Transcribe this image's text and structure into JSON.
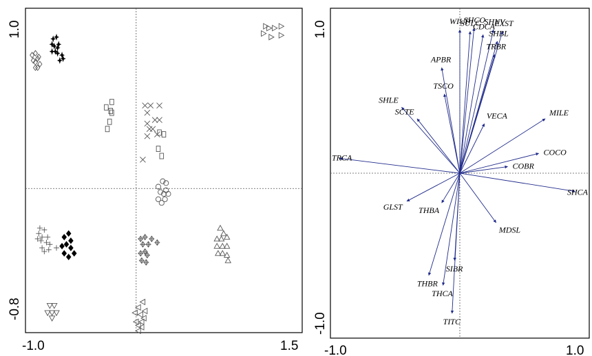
{
  "chart_data": [
    {
      "type": "scatter",
      "xlim": [
        -1.0,
        1.5
      ],
      "ylim": [
        -0.8,
        1.0
      ],
      "x_ticks": [
        "-1.0",
        "1.5"
      ],
      "y_ticks": [
        "1.0",
        "-0.8"
      ],
      "reference_lines": {
        "x": 0,
        "y": 0
      },
      "groups": [
        {
          "marker": "diamond-open",
          "points": [
            [
              -0.94,
              0.74
            ],
            [
              -0.91,
              0.75
            ],
            [
              -0.93,
              0.71
            ],
            [
              -0.91,
              0.7
            ],
            [
              -0.89,
              0.72
            ],
            [
              -0.88,
              0.73
            ],
            [
              -0.91,
              0.67
            ],
            [
              -0.89,
              0.67
            ],
            [
              -0.87,
              0.69
            ]
          ]
        },
        {
          "marker": "cross-filled",
          "points": [
            [
              -0.75,
              0.83
            ],
            [
              -0.72,
              0.84
            ],
            [
              -0.76,
              0.8
            ],
            [
              -0.74,
              0.79
            ],
            [
              -0.71,
              0.78
            ],
            [
              -0.7,
              0.8
            ],
            [
              -0.76,
              0.76
            ],
            [
              -0.73,
              0.76
            ],
            [
              -0.71,
              0.75
            ],
            [
              -0.67,
              0.74
            ],
            [
              -0.69,
              0.71
            ],
            [
              -0.66,
              0.72
            ]
          ]
        },
        {
          "marker": "square-open",
          "points": [
            [
              -0.22,
              0.48
            ],
            [
              -0.27,
              0.45
            ],
            [
              -0.23,
              0.43
            ],
            [
              -0.22,
              0.42
            ],
            [
              -0.24,
              0.37
            ],
            [
              -0.26,
              0.33
            ],
            [
              0.21,
              0.31
            ],
            [
              0.25,
              0.3
            ],
            [
              0.2,
              0.22
            ],
            [
              0.23,
              0.18
            ]
          ]
        },
        {
          "marker": "x",
          "points": [
            [
              0.08,
              0.46
            ],
            [
              0.13,
              0.46
            ],
            [
              0.21,
              0.46
            ],
            [
              0.1,
              0.42
            ],
            [
              0.17,
              0.38
            ],
            [
              0.1,
              0.36
            ],
            [
              0.21,
              0.38
            ],
            [
              0.15,
              0.33
            ],
            [
              0.19,
              0.3
            ],
            [
              0.12,
              0.33
            ],
            [
              0.1,
              0.29
            ],
            [
              0.06,
              0.16
            ]
          ]
        },
        {
          "marker": "triangle-right-open",
          "points": [
            [
              1.17,
              0.9
            ],
            [
              1.2,
              0.89
            ],
            [
              1.25,
              0.89
            ],
            [
              1.31,
              0.9
            ],
            [
              1.15,
              0.86
            ],
            [
              1.22,
              0.84
            ],
            [
              1.31,
              0.85
            ]
          ]
        },
        {
          "marker": "circle-open",
          "points": [
            [
              0.24,
              0.04
            ],
            [
              0.27,
              0.03
            ],
            [
              0.2,
              0.01
            ],
            [
              0.27,
              -0.01
            ],
            [
              0.22,
              -0.02
            ],
            [
              0.25,
              -0.03
            ],
            [
              0.29,
              -0.03
            ],
            [
              0.2,
              -0.06
            ],
            [
              0.23,
              -0.08
            ],
            [
              0.26,
              -0.06
            ]
          ]
        },
        {
          "marker": "plus",
          "points": [
            [
              -0.87,
              -0.22
            ],
            [
              -0.83,
              -0.23
            ],
            [
              -0.88,
              -0.25
            ],
            [
              -0.85,
              -0.27
            ],
            [
              -0.8,
              -0.27
            ],
            [
              -0.89,
              -0.28
            ],
            [
              -0.86,
              -0.29
            ],
            [
              -0.81,
              -0.3
            ],
            [
              -0.78,
              -0.31
            ],
            [
              -0.85,
              -0.33
            ],
            [
              -0.79,
              -0.34
            ],
            [
              -0.72,
              -0.33
            ],
            [
              -0.83,
              -0.35
            ]
          ]
        },
        {
          "marker": "diamond-filled",
          "points": [
            [
              -0.61,
              -0.25
            ],
            [
              -0.65,
              -0.27
            ],
            [
              -0.59,
              -0.29
            ],
            [
              -0.63,
              -0.31
            ],
            [
              -0.67,
              -0.32
            ],
            [
              -0.59,
              -0.33
            ],
            [
              -0.65,
              -0.36
            ],
            [
              -0.61,
              -0.38
            ],
            [
              -0.56,
              -0.36
            ]
          ]
        },
        {
          "marker": "diamond-plus",
          "points": [
            [
              0.04,
              -0.28
            ],
            [
              0.08,
              -0.27
            ],
            [
              0.14,
              -0.28
            ],
            [
              0.19,
              -0.3
            ],
            [
              0.06,
              -0.31
            ],
            [
              0.11,
              -0.31
            ],
            [
              0.08,
              -0.35
            ],
            [
              0.04,
              -0.36
            ],
            [
              0.1,
              -0.37
            ],
            [
              0.05,
              -0.4
            ],
            [
              0.09,
              -0.41
            ]
          ]
        },
        {
          "marker": "triangle-up-open",
          "points": [
            [
              0.76,
              -0.22
            ],
            [
              0.79,
              -0.25
            ],
            [
              0.73,
              -0.28
            ],
            [
              0.77,
              -0.28
            ],
            [
              0.82,
              -0.27
            ],
            [
              0.73,
              -0.32
            ],
            [
              0.78,
              -0.32
            ],
            [
              0.82,
              -0.32
            ],
            [
              0.74,
              -0.36
            ],
            [
              0.78,
              -0.36
            ],
            [
              0.82,
              -0.37
            ],
            [
              0.83,
              -0.4
            ]
          ]
        },
        {
          "marker": "triangle-down-open",
          "points": [
            [
              -0.78,
              -0.65
            ],
            [
              -0.74,
              -0.65
            ],
            [
              -0.8,
              -0.69
            ],
            [
              -0.76,
              -0.69
            ],
            [
              -0.72,
              -0.69
            ],
            [
              -0.76,
              -0.72
            ]
          ]
        },
        {
          "marker": "triangle-left-open",
          "points": [
            [
              0.06,
              -0.63
            ],
            [
              0.02,
              -0.66
            ],
            [
              0.08,
              -0.68
            ],
            [
              -0.01,
              -0.69
            ],
            [
              0.04,
              -0.7
            ],
            [
              0.07,
              -0.72
            ],
            [
              0.0,
              -0.74
            ],
            [
              0.05,
              -0.74
            ],
            [
              0.02,
              -0.76
            ],
            [
              0.05,
              -0.77
            ],
            [
              0.02,
              -0.79
            ]
          ]
        }
      ]
    },
    {
      "type": "biplot",
      "xlim": [
        -1.0,
        1.0
      ],
      "ylim": [
        -1.0,
        1.0
      ],
      "x_ticks": [
        "-1.0",
        "1.0"
      ],
      "y_ticks": [
        "1.0",
        "-1.0"
      ],
      "reference_lines": {
        "x": 0,
        "y": 0
      },
      "vectors": [
        {
          "name": "WIUP",
          "x": 0.0,
          "y": 0.87
        },
        {
          "name": "SULC",
          "x": 0.08,
          "y": 0.86
        },
        {
          "name": "SHCO",
          "x": 0.11,
          "y": 0.88
        },
        {
          "name": "CDCA",
          "x": 0.18,
          "y": 0.84
        },
        {
          "name": "SHNV",
          "x": 0.26,
          "y": 0.87
        },
        {
          "name": "SHBL",
          "x": 0.29,
          "y": 0.8
        },
        {
          "name": "EXST",
          "x": 0.33,
          "y": 0.86
        },
        {
          "name": "TRBR",
          "x": 0.27,
          "y": 0.72
        },
        {
          "name": "APBR",
          "x": -0.14,
          "y": 0.64
        },
        {
          "name": "TSCO",
          "x": -0.12,
          "y": 0.48
        },
        {
          "name": "SHLE",
          "x": -0.45,
          "y": 0.4
        },
        {
          "name": "SCTE",
          "x": -0.33,
          "y": 0.33
        },
        {
          "name": "VECA",
          "x": 0.19,
          "y": 0.3
        },
        {
          "name": "MILE",
          "x": 0.66,
          "y": 0.33
        },
        {
          "name": "TRCA",
          "x": -0.93,
          "y": 0.09
        },
        {
          "name": "COCO",
          "x": 0.61,
          "y": 0.12
        },
        {
          "name": "COBR",
          "x": 0.37,
          "y": 0.04
        },
        {
          "name": "SHCA",
          "x": 0.89,
          "y": -0.11
        },
        {
          "name": "GLST",
          "x": -0.41,
          "y": -0.17
        },
        {
          "name": "THBA",
          "x": -0.14,
          "y": -0.18
        },
        {
          "name": "MDSL",
          "x": 0.28,
          "y": -0.3
        },
        {
          "name": "SIBR",
          "x": -0.04,
          "y": -0.53
        },
        {
          "name": "THBR",
          "x": -0.24,
          "y": -0.62
        },
        {
          "name": "THCA",
          "x": -0.13,
          "y": -0.68
        },
        {
          "name": "TITC",
          "x": -0.06,
          "y": -0.85
        }
      ]
    }
  ]
}
